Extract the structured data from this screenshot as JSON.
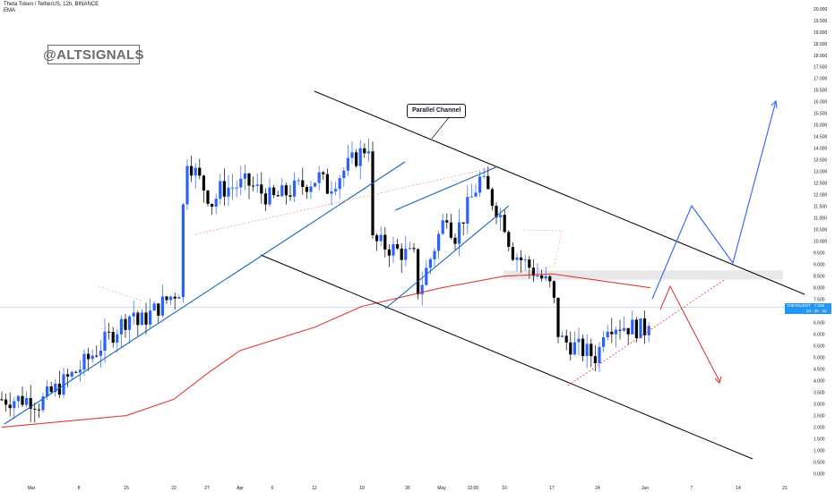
{
  "header": {
    "symbol_line": "Theta Token / TetherUS, 12h, BINANCE",
    "indicator_line": "EMA"
  },
  "watermark": {
    "text": "@ALTSIGNALS"
  },
  "annotation": {
    "label": "Parallel Channel"
  },
  "price_tag": {
    "symbol": "THETAUSDT",
    "price": "7.156",
    "line2": "23 : 45 : 32"
  },
  "colors": {
    "up_candle": "#2962ff",
    "down_candle": "#000000",
    "ema": "#e53935",
    "channel": "#000000",
    "trendline": "#1565c0",
    "projection_up": "#2962ff",
    "projection_down": "#d32f2f",
    "zone": "#e0e0e0"
  },
  "chart_data": {
    "type": "candlestick",
    "title": "Theta Token / TetherUS, 12h, BINANCE",
    "y_axis": {
      "labels": [
        "20.000",
        "19.500",
        "19.000",
        "18.500",
        "18.000",
        "17.500",
        "17.000",
        "16.500",
        "16.000",
        "15.500",
        "15.000",
        "14.500",
        "14.000",
        "13.500",
        "13.000",
        "12.500",
        "12.000",
        "11.500",
        "11.000",
        "10.500",
        "10.000",
        "9.500",
        "9.000",
        "8.500",
        "8.000",
        "7.500",
        "7.000",
        "6.500",
        "6.000",
        "5.500",
        "5.000",
        "4.500",
        "4.000",
        "3.500",
        "3.000",
        "2.500",
        "2.000",
        "1.500",
        "1.000",
        "0.500",
        "0.000"
      ],
      "range": [
        0,
        20
      ],
      "scale": "linear"
    },
    "x_axis": {
      "labels": [
        "Mar",
        "8",
        "15",
        "22",
        "27",
        "Apr",
        "6",
        "12",
        "19",
        "26",
        "May",
        "12:00",
        "10",
        "17",
        "24",
        "Jun",
        "7",
        "14",
        "21"
      ]
    },
    "current_price": 7.156,
    "ema_label": "EMA",
    "price_path": [
      [
        "Mar",
        3.2
      ],
      [
        "Mar",
        3.0
      ],
      [
        "8",
        4.5
      ],
      [
        "15",
        7.0
      ],
      [
        "15",
        6.4
      ],
      [
        "22",
        8.0
      ],
      [
        "22",
        13.8
      ],
      [
        "27",
        11.5
      ],
      [
        "27",
        12.2
      ],
      [
        "Apr",
        12.5
      ],
      [
        "6",
        11.8
      ],
      [
        "12",
        12.8
      ],
      [
        "12",
        12.2
      ],
      [
        "19",
        14.2
      ],
      [
        "19",
        10.0
      ],
      [
        "26",
        9.3
      ],
      [
        "26",
        7.8
      ],
      [
        "May",
        11.5
      ],
      [
        "May",
        10.0
      ],
      [
        "12:00",
        12.7
      ],
      [
        "10",
        10.8
      ],
      [
        "10",
        9.6
      ],
      [
        "17",
        8.0
      ],
      [
        "17",
        5.8
      ],
      [
        "24",
        5.0
      ],
      [
        "24",
        6.5
      ],
      [
        "Jun",
        6.2
      ],
      [
        "Jun",
        7.15
      ]
    ],
    "ema_path": [
      [
        "Mar",
        2.0
      ],
      [
        "15",
        2.5
      ],
      [
        "22",
        3.2
      ],
      [
        "27",
        4.3
      ],
      [
        "Apr",
        5.3
      ],
      [
        "12",
        6.3
      ],
      [
        "19",
        7.2
      ],
      [
        "May",
        8.0
      ],
      [
        "10",
        8.5
      ],
      [
        "17",
        8.6
      ],
      [
        "Jun",
        8.0
      ]
    ],
    "projection_bullish": [
      7.2,
      11.6,
      9.0,
      16.1
    ],
    "projection_bearish": [
      8.0,
      3.9
    ],
    "resistance_zone": [
      8.35,
      8.75
    ]
  }
}
